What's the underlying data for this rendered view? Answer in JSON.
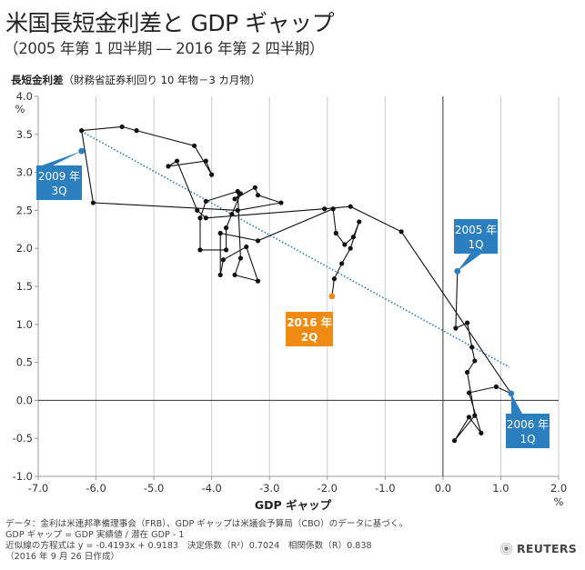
{
  "title": "米国長短金利差と GDP ギャップ",
  "subtitle": "（2005 年第 1 四半期 ― 2016 年第 2 四半期）",
  "y_title_bold": "長短金利差",
  "y_title_note": "（財務省証券利回り 10 年物－3 カ月物）",
  "colors": {
    "series_line": "#111111",
    "trend": "#1f7bbf",
    "blue": "#2b7fbf",
    "orange": "#ef8a13",
    "axis": "#333333",
    "grid": "#cccccc"
  },
  "chart_data": {
    "type": "line",
    "title": "米国長短金利差と GDP ギャップ",
    "xlabel": "GDP ギャップ",
    "x_unit": "%",
    "ylabel": "長短金利差",
    "y_unit": "%",
    "xlim": [
      -7.0,
      2.0
    ],
    "ylim": [
      -1.0,
      4.0
    ],
    "x_ticks": [
      -7.0,
      -6.0,
      -5.0,
      -4.0,
      -3.0,
      -2.0,
      -1.0,
      0.0,
      1.0,
      2.0
    ],
    "y_ticks": [
      -1.0,
      -0.5,
      0.0,
      0.5,
      1.0,
      1.5,
      2.0,
      2.5,
      3.0,
      3.5,
      4.0
    ],
    "x_tick_labels": [
      "-7.0",
      "-6.0",
      "-5.0",
      "-4.0",
      "-3.0",
      "-2.0",
      "-1.0",
      "0.0",
      "1.0",
      "2.0"
    ],
    "y_tick_labels": [
      "-1.0",
      "-0.5",
      "0.0",
      "0.5",
      "1.0",
      "1.5",
      "2.0",
      "2.5",
      "3.0",
      "3.5",
      "4.0"
    ],
    "grid": "vertical",
    "series": [
      {
        "name": "長短金利差 vs GDP ギャップ",
        "points": [
          [
            0.25,
            1.7
          ],
          [
            0.22,
            0.95
          ],
          [
            0.42,
            1.02
          ],
          [
            0.5,
            0.7
          ],
          [
            0.55,
            0.52
          ],
          [
            0.42,
            0.37
          ],
          [
            0.55,
            -0.2
          ],
          [
            0.2,
            -0.53
          ],
          [
            0.45,
            -0.22
          ],
          [
            0.66,
            -0.43
          ],
          [
            0.45,
            0.1
          ],
          [
            0.92,
            0.18
          ],
          [
            1.18,
            0.09
          ],
          [
            -0.72,
            2.22
          ],
          [
            -1.6,
            2.55
          ],
          [
            -2.05,
            2.52
          ],
          [
            -4.1,
            2.4
          ],
          [
            -4.25,
            2.5
          ],
          [
            -4.6,
            3.15
          ],
          [
            -4.75,
            3.08
          ],
          [
            -4.1,
            3.15
          ],
          [
            -4.0,
            2.97
          ],
          [
            -4.3,
            3.35
          ],
          [
            -5.3,
            3.55
          ],
          [
            -5.55,
            3.6
          ],
          [
            -6.25,
            3.55
          ],
          [
            -6.05,
            2.6
          ],
          [
            -3.55,
            2.5
          ],
          [
            -2.8,
            2.6
          ],
          [
            -3.2,
            2.7
          ],
          [
            -3.25,
            2.8
          ],
          [
            -3.6,
            2.65
          ],
          [
            -3.5,
            2.72
          ],
          [
            -3.65,
            2.45
          ],
          [
            -3.75,
            2.27
          ],
          [
            -3.75,
            1.98
          ],
          [
            -4.2,
            1.98
          ],
          [
            -4.2,
            2.4
          ],
          [
            -4.1,
            2.62
          ],
          [
            -3.55,
            2.75
          ],
          [
            -3.5,
            1.87
          ],
          [
            -3.6,
            1.65
          ],
          [
            -3.2,
            1.57
          ],
          [
            -3.4,
            2.02
          ],
          [
            -3.8,
            1.85
          ],
          [
            -3.85,
            1.65
          ],
          [
            -3.85,
            2.2
          ],
          [
            -3.2,
            2.1
          ],
          [
            -1.9,
            2.52
          ],
          [
            -1.85,
            2.2
          ],
          [
            -1.7,
            2.05
          ],
          [
            -1.55,
            2.15
          ],
          [
            -1.45,
            2.35
          ],
          [
            -1.6,
            2.0
          ],
          [
            -1.75,
            1.8
          ],
          [
            -1.88,
            1.6
          ],
          [
            -1.92,
            1.37
          ]
        ]
      }
    ],
    "trendline": {
      "equation": "y = -0.4193x + 0.9183",
      "slope": -0.4193,
      "intercept": 0.9183,
      "x_range": [
        -6.25,
        1.15
      ]
    },
    "annotations": [
      {
        "period": "2005 年 1Q",
        "line1": "2005 年",
        "line2": "1Q",
        "x": 0.25,
        "y": 1.7,
        "color": "blue"
      },
      {
        "period": "2006 年 1Q",
        "line1": "2006 年",
        "line2": "1Q",
        "x": 1.18,
        "y": 0.09,
        "color": "blue"
      },
      {
        "period": "2009 年 3Q",
        "line1": "2009 年",
        "line2": "3Q",
        "x": -6.25,
        "y": 3.28,
        "color": "blue"
      },
      {
        "period": "2016 年 2Q",
        "line1": "2016 年",
        "line2": "2Q",
        "x": -1.92,
        "y": 1.37,
        "color": "orange"
      }
    ]
  },
  "footnotes": [
    "データ：金利は米連邦準備理事会（FRB）、GDP ギャップは米議会予算局（CBO）のデータに基づく。",
    "GDP ギャップ = GDP 実績値 / 潜在 GDP - 1",
    "近似線の方程式は y = -0.4193x + 0.9183　決定係数（R²）0.7024　相関係数（R）0.838",
    "（2016 年 9 月 26 日作成）"
  ],
  "logo": "REUTERS"
}
